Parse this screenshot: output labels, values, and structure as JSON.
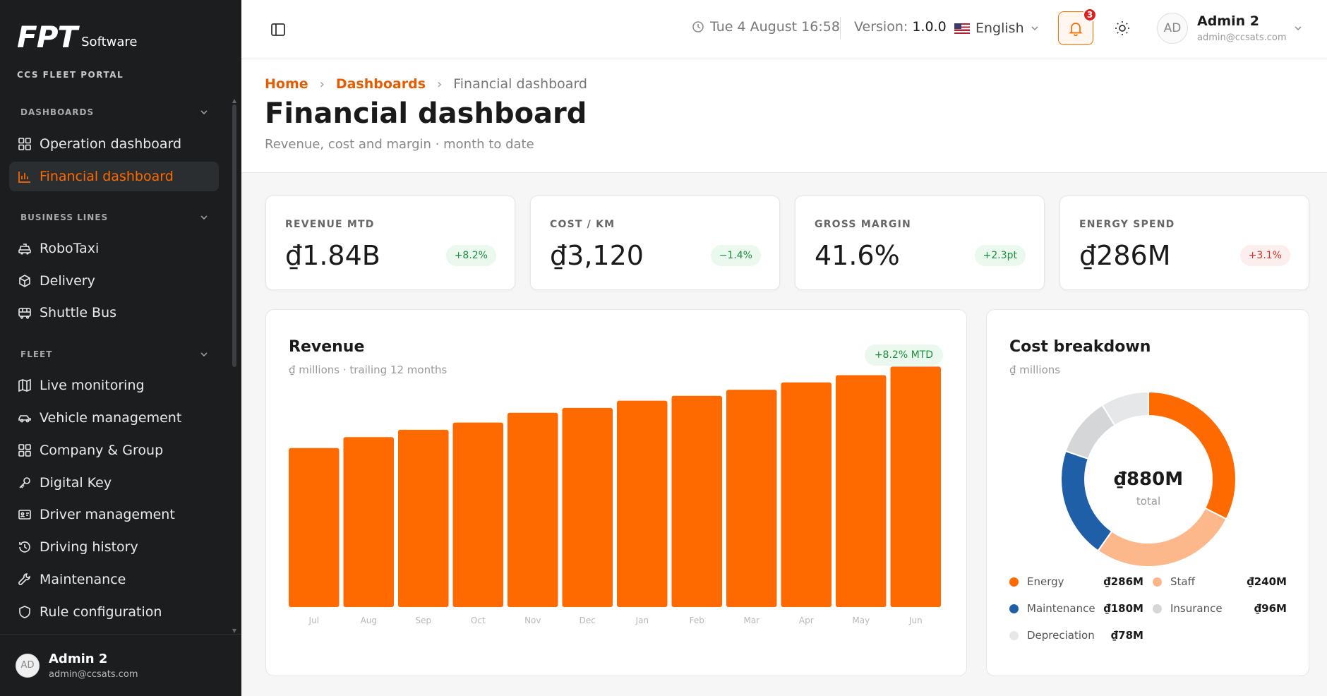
{
  "sidebar": {
    "logo": {
      "mark": "FPT",
      "text": "Software"
    },
    "portal": "CCS FLEET PORTAL",
    "sections": [
      {
        "title": "DASHBOARDS",
        "items": [
          {
            "label": "Operation dashboard",
            "icon": "grid-icon"
          },
          {
            "label": "Financial dashboard",
            "icon": "bar-chart-icon",
            "active": true
          }
        ]
      },
      {
        "title": "BUSINESS LINES",
        "items": [
          {
            "label": "RoboTaxi",
            "icon": "taxi-icon"
          },
          {
            "label": "Delivery",
            "icon": "package-icon"
          },
          {
            "label": "Shuttle Bus",
            "icon": "bus-icon"
          }
        ]
      },
      {
        "title": "FLEET",
        "items": [
          {
            "label": "Live monitoring",
            "icon": "map-icon"
          },
          {
            "label": "Vehicle management",
            "icon": "car-icon"
          },
          {
            "label": "Company & Group",
            "icon": "grid-icon"
          },
          {
            "label": "Digital Key",
            "icon": "key-icon"
          },
          {
            "label": "Driver management",
            "icon": "id-card-icon"
          },
          {
            "label": "Driving history",
            "icon": "history-icon"
          },
          {
            "label": "Maintenance",
            "icon": "wrench-icon"
          },
          {
            "label": "Rule configuration",
            "icon": "shield-icon"
          }
        ]
      }
    ],
    "user": {
      "initials": "AD",
      "name": "Admin 2",
      "email": "admin@ccsats.com"
    }
  },
  "topbar": {
    "datetime": "Tue 4 August 16:58",
    "version_label": "Version:",
    "version": "1.0.0",
    "language": "English",
    "notifications": "3",
    "user": {
      "initials": "AD",
      "name": "Admin 2",
      "email": "admin@ccsats.com"
    }
  },
  "header": {
    "breadcrumb": [
      "Home",
      "Dashboards",
      "Financial dashboard"
    ],
    "title": "Financial dashboard",
    "subtitle": "Revenue, cost and margin · month to date"
  },
  "kpis": [
    {
      "label": "REVENUE MTD",
      "value": "₫1.84B",
      "change": "+8.2%",
      "trend": "pos"
    },
    {
      "label": "COST / KM",
      "value": "₫3,120",
      "change": "−1.4%",
      "trend": "pos"
    },
    {
      "label": "GROSS MARGIN",
      "value": "41.6%",
      "change": "+2.3pt",
      "trend": "pos"
    },
    {
      "label": "ENERGY SPEND",
      "value": "₫286M",
      "change": "+3.1%",
      "trend": "neg"
    }
  ],
  "revenue_card": {
    "title": "Revenue",
    "subtitle": "₫ millions · trailing 12 months",
    "badge": "+8.2% MTD"
  },
  "cost_card": {
    "title": "Cost breakdown",
    "subtitle": "₫ millions",
    "center_value": "₫880M",
    "center_label": "total"
  },
  "chart_data": [
    {
      "type": "bar",
      "categories": [
        "Jul",
        "Aug",
        "Sep",
        "Oct",
        "Nov",
        "Dec",
        "Jan",
        "Feb",
        "Mar",
        "Apr",
        "May",
        "Jun"
      ],
      "values": [
        1310,
        1400,
        1460,
        1520,
        1600,
        1640,
        1700,
        1740,
        1790,
        1850,
        1910,
        1980
      ],
      "ylim": [
        0,
        2000
      ],
      "color": "#ff6a00",
      "grid": false
    },
    {
      "type": "pie",
      "hole": true,
      "categories": [
        "Energy",
        "Staff",
        "Maintenance",
        "Insurance",
        "Depreciation"
      ],
      "values": [
        286,
        240,
        180,
        96,
        78
      ],
      "labels": [
        "₫286M",
        "₫240M",
        "₫180M",
        "₫96M",
        "₫78M"
      ],
      "colors": [
        "#ff6a00",
        "#fcb88a",
        "#1f5fa8",
        "#d4d6d8",
        "#e6e7e8"
      ]
    }
  ]
}
